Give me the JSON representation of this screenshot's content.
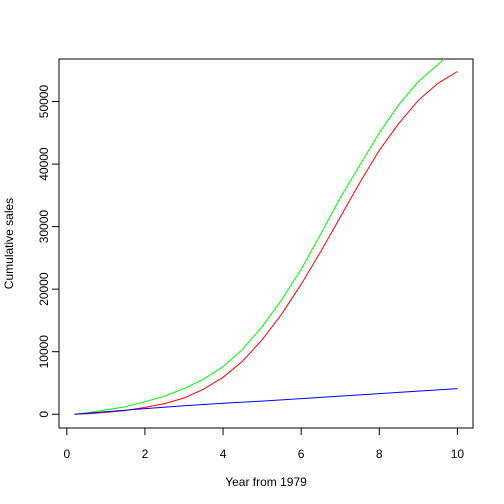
{
  "chart_data": {
    "type": "line",
    "xlabel": "Year from 1979",
    "ylabel": "Cumulative sales",
    "xlim": [
      -0.2,
      10.4
    ],
    "ylim": [
      -2200,
      56800
    ],
    "xticks": [
      0,
      2,
      4,
      6,
      8,
      10
    ],
    "yticks": [
      0,
      10000,
      20000,
      30000,
      40000,
      50000
    ],
    "grid": false,
    "legend": "none",
    "series": [
      {
        "color": "#00ff00",
        "x": [
          0.2,
          0.6,
          1,
          1.5,
          2,
          2.5,
          3,
          3.5,
          4,
          4.5,
          5,
          5.5,
          6,
          6.5,
          7,
          7.5,
          8,
          8.5,
          9,
          9.5,
          9.65
        ],
        "y": [
          0,
          300,
          700,
          1200,
          2000,
          2900,
          4100,
          5600,
          7600,
          10400,
          14000,
          18300,
          23200,
          28800,
          34600,
          39800,
          45000,
          49500,
          53200,
          55900,
          56800
        ]
      },
      {
        "color": "#ff0000",
        "x": [
          0.2,
          0.6,
          1,
          1.5,
          2,
          2.5,
          3,
          3.5,
          4,
          4.5,
          5,
          5.5,
          6,
          6.5,
          7,
          7.5,
          8,
          8.5,
          9,
          9.5,
          10
        ],
        "y": [
          0,
          100,
          300,
          600,
          1100,
          1700,
          2600,
          4000,
          5900,
          8500,
          11900,
          16000,
          20800,
          26000,
          31500,
          37000,
          42200,
          46500,
          50200,
          52900,
          54800
        ]
      },
      {
        "color": "#0000ff",
        "x": [
          0.2,
          1,
          2,
          3,
          4,
          5,
          6,
          7,
          8,
          9,
          10
        ],
        "y": [
          0,
          400,
          900,
          1350,
          1750,
          2100,
          2500,
          2900,
          3300,
          3700,
          4100
        ]
      }
    ]
  }
}
